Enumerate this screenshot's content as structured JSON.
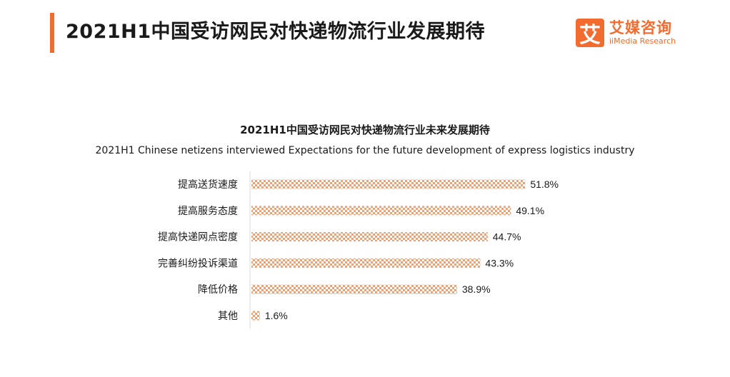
{
  "header": {
    "title": "2021H1中国受访网民对快递物流行业发展期待",
    "logo": {
      "mark": "艾",
      "name_cn": "艾媒咨询",
      "name_en": "iiMedia Research"
    }
  },
  "colors": {
    "accent": "#f26b2f",
    "bar": "#f4a06e",
    "bar_pattern": "#ffffff"
  },
  "chart_data": {
    "type": "bar",
    "orientation": "horizontal",
    "title": "2021H1中国受访网民对快递物流行业未来发展期待",
    "subtitle": "2021H1 Chinese netizens interviewed Expectations for the future development of express logistics industry",
    "categories": [
      "提高送货速度",
      "提高服务态度",
      "提高快递网点密度",
      "完善纠纷投诉渠道",
      "降低价格",
      "其他"
    ],
    "values": [
      51.8,
      49.1,
      44.7,
      43.3,
      38.9,
      1.6
    ],
    "labels": [
      "51.8%",
      "49.1%",
      "44.7%",
      "43.3%",
      "38.9%",
      "1.6%"
    ],
    "unit": "%",
    "xlim": [
      0,
      60
    ],
    "grid": false,
    "legend": "none"
  }
}
